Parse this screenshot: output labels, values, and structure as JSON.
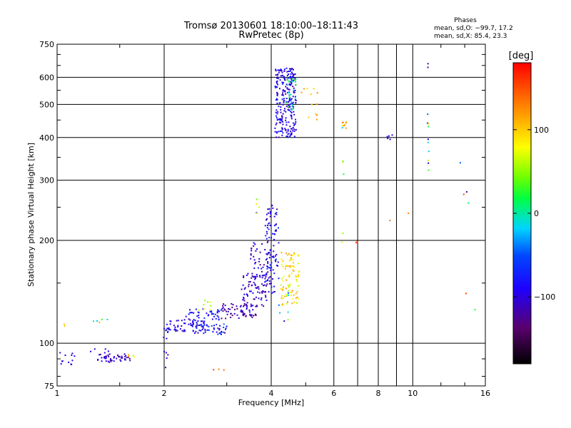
{
  "chart_data": {
    "type": "scatter",
    "title": "Tromsø 20130601 18:10:00–18:11:43",
    "subtitle": "RwPretec (8p)",
    "xlabel": "Frequency [MHz]",
    "ylabel": "Stationary phase Virtual Height [km]",
    "x_scale": "log",
    "y_scale": "log",
    "xlim": [
      1,
      16
    ],
    "ylim": [
      75,
      750
    ],
    "x_ticks": [
      1,
      2,
      4,
      6,
      8,
      10,
      16
    ],
    "x_tick_labels": [
      "1",
      "2",
      "4",
      "6",
      "8",
      "10",
      "16"
    ],
    "x_grid_lines": [
      2,
      4,
      6,
      7,
      8,
      9,
      10
    ],
    "y_ticks": [
      75,
      100,
      200,
      300,
      400,
      500,
      600,
      750
    ],
    "y_tick_labels": [
      "75",
      "100",
      "200",
      "300",
      "400",
      "500",
      "600",
      "750"
    ],
    "grid": true,
    "legend_title": "Phases",
    "legend_lines": [
      "mean, sd,O: −99.7, 17.2",
      "mean, sd,X:  85.4, 23.3"
    ],
    "colorbar": {
      "label": "[deg]",
      "min": -180,
      "max": 180,
      "tick_values": [
        100,
        0,
        -100
      ],
      "tick_labels": [
        "100",
        "0",
        "−100"
      ],
      "colormap": "rainbow-black-to-red"
    },
    "clusters": [
      {
        "x": [
          1.0,
          1.12
        ],
        "y": [
          85,
          95
        ],
        "n": 12,
        "phase": [
          -110,
          -90
        ]
      },
      {
        "x": [
          1.2,
          1.4
        ],
        "y": [
          92,
          98
        ],
        "n": 6,
        "phase": [
          -110,
          -90
        ]
      },
      {
        "x": [
          1.3,
          1.62
        ],
        "y": [
          88,
          93
        ],
        "n": 45,
        "phase": [
          -130,
          -90
        ]
      },
      {
        "x": [
          1.02,
          1.06
        ],
        "y": [
          112,
          118
        ],
        "n": 2,
        "phase": [
          100,
          110
        ]
      },
      {
        "x": [
          1.2,
          1.4
        ],
        "y": [
          113,
          120
        ],
        "n": 5,
        "phase": [
          -110,
          130
        ]
      },
      {
        "x": [
          1.55,
          1.65
        ],
        "y": [
          91,
          95
        ],
        "n": 4,
        "phase": [
          60,
          110
        ]
      },
      {
        "x": [
          1.98,
          2.05
        ],
        "y": [
          84,
          95
        ],
        "n": 5,
        "phase": [
          -120,
          -90
        ]
      },
      {
        "x": [
          1.98,
          2.05
        ],
        "y": [
          103,
          112
        ],
        "n": 4,
        "phase": [
          -110,
          -80
        ]
      },
      {
        "x": [
          2.02,
          2.6
        ],
        "y": [
          108,
          118
        ],
        "n": 60,
        "phase": [
          -120,
          -70
        ]
      },
      {
        "x": [
          2.4,
          3.0
        ],
        "y": [
          106,
          114
        ],
        "n": 50,
        "phase": [
          -120,
          -40
        ]
      },
      {
        "x": [
          2.3,
          2.9
        ],
        "y": [
          117,
          126
        ],
        "n": 40,
        "phase": [
          -120,
          -60
        ]
      },
      {
        "x": [
          2.5,
          2.9
        ],
        "y": [
          125,
          135
        ],
        "n": 8,
        "phase": [
          40,
          110
        ]
      },
      {
        "x": [
          2.9,
          3.6
        ],
        "y": [
          118,
          132
        ],
        "n": 50,
        "phase": [
          -140,
          -90
        ]
      },
      {
        "x": [
          3.3,
          3.9
        ],
        "y": [
          128,
          160
        ],
        "n": 70,
        "phase": [
          -130,
          -80
        ]
      },
      {
        "x": [
          3.3,
          3.7
        ],
        "y": [
          116,
          130
        ],
        "n": 20,
        "phase": [
          -130,
          -90
        ]
      },
      {
        "x": [
          3.5,
          4.0
        ],
        "y": [
          155,
          200
        ],
        "n": 55,
        "phase": [
          -130,
          -80
        ]
      },
      {
        "x": [
          3.85,
          4.2
        ],
        "y": [
          140,
          255
        ],
        "n": 90,
        "phase": [
          -120,
          -60
        ]
      },
      {
        "x": [
          3.5,
          3.7
        ],
        "y": [
          240,
          265
        ],
        "n": 5,
        "phase": [
          -110,
          120
        ]
      },
      {
        "x": [
          4.25,
          4.8
        ],
        "y": [
          130,
          185
        ],
        "n": 85,
        "phase": [
          60,
          130
        ]
      },
      {
        "x": [
          4.2,
          4.5
        ],
        "y": [
          115,
          145
        ],
        "n": 10,
        "phase": [
          -110,
          100
        ]
      },
      {
        "x": [
          4.1,
          4.7
        ],
        "y": [
          400,
          640
        ],
        "n": 260,
        "phase": [
          -120,
          -70
        ]
      },
      {
        "x": [
          4.4,
          4.7
        ],
        "y": [
          480,
          600
        ],
        "n": 25,
        "phase": [
          -20,
          40
        ]
      },
      {
        "x": [
          4.8,
          5.4
        ],
        "y": [
          440,
          560
        ],
        "n": 12,
        "phase": [
          90,
          140
        ]
      },
      {
        "x": [
          6.3,
          6.6
        ],
        "y": [
          425,
          445
        ],
        "n": 8,
        "phase": [
          90,
          130
        ]
      },
      {
        "x": [
          6.3,
          6.4
        ],
        "y": [
          170,
          475
        ],
        "n": 6,
        "phase": [
          -110,
          150
        ]
      },
      {
        "x": [
          8.2,
          8.9
        ],
        "y": [
          395,
          410
        ],
        "n": 5,
        "phase": [
          -110,
          -80
        ]
      },
      {
        "x": [
          11.0,
          11.1
        ],
        "y": [
          320,
          680
        ],
        "n": 12,
        "phase": [
          -120,
          120
        ]
      },
      {
        "x": [
          13.5,
          15.2
        ],
        "y": [
          120,
          500
        ],
        "n": 6,
        "phase": [
          -120,
          160
        ]
      },
      {
        "x": [
          6.9,
          7.1
        ],
        "y": [
          195,
          200
        ],
        "n": 2,
        "phase": [
          150,
          160
        ]
      },
      {
        "x": [
          8.5,
          9.9
        ],
        "y": [
          155,
          305
        ],
        "n": 2,
        "phase": [
          120,
          140
        ]
      },
      {
        "x": [
          2.6,
          3.0
        ],
        "y": [
          78,
          84
        ],
        "n": 3,
        "phase": [
          120,
          160
        ]
      }
    ]
  }
}
